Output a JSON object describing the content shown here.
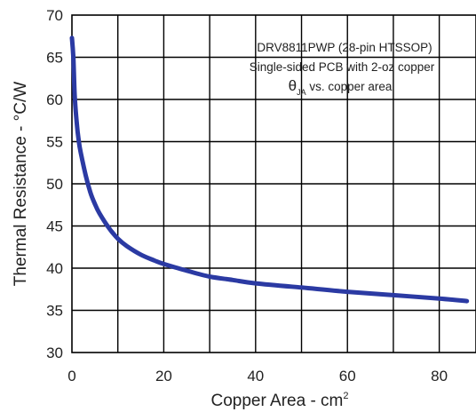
{
  "chart_data": {
    "type": "line",
    "xlabel": "Copper Area - cm",
    "xlabel_sup": "2",
    "ylabel": "Thermal Resistance - °C/W",
    "xlim": [
      0,
      88
    ],
    "ylim": [
      30,
      70
    ],
    "xticks": [
      0,
      20,
      40,
      60,
      80
    ],
    "yticks": [
      30,
      35,
      40,
      45,
      50,
      55,
      60,
      65,
      70
    ],
    "grid": true,
    "annotations": {
      "line1": "DRV8811PWP (28-pin HTSSOP)",
      "line2": "Single-sided PCB with 2-oz copper",
      "theta": "θ",
      "theta_sub": "JA",
      "line3_rest": " vs. copper area"
    },
    "series": [
      {
        "color": "#2b3aa3",
        "x": [
          0,
          0.3,
          0.6,
          1,
          1.5,
          2,
          3,
          4,
          5,
          6,
          8,
          10,
          12,
          15,
          18,
          20,
          25,
          30,
          35,
          40,
          50,
          60,
          70,
          80,
          86
        ],
        "y": [
          67.3,
          65,
          60.5,
          57.5,
          55,
          53.5,
          51,
          49,
          47.6,
          46.5,
          44.8,
          43.5,
          42.6,
          41.6,
          40.9,
          40.5,
          39.7,
          39,
          38.6,
          38.2,
          37.7,
          37.2,
          36.8,
          36.4,
          36.1
        ]
      }
    ]
  }
}
